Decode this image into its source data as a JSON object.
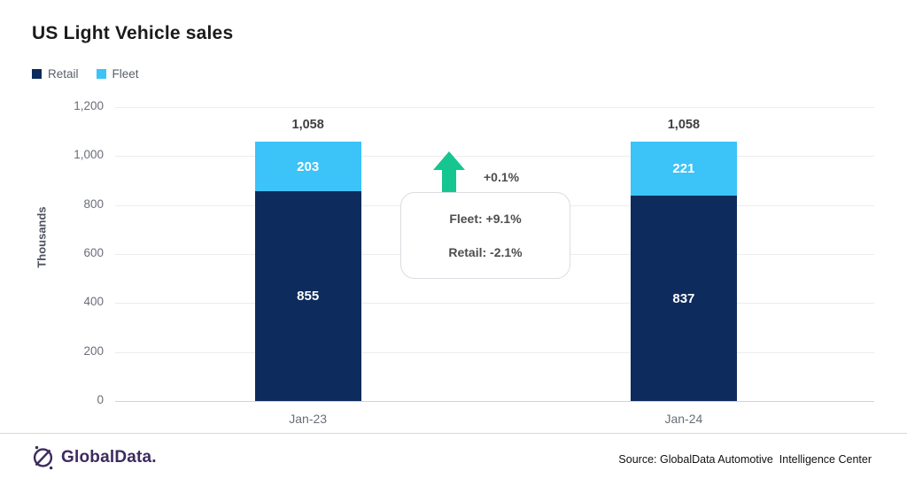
{
  "header": {
    "title": "US Light Vehicle sales"
  },
  "legend": [
    {
      "label": "Retail",
      "color": "#0d2b5c"
    },
    {
      "label": "Fleet",
      "color": "#3cc3f8"
    }
  ],
  "chart_data": {
    "type": "bar",
    "stacked": true,
    "title": "US Light Vehicle sales",
    "categories": [
      "Jan-23",
      "Jan-24"
    ],
    "series": [
      {
        "name": "Retail",
        "color": "#0d2b5c",
        "values": [
          855,
          837
        ]
      },
      {
        "name": "Fleet",
        "color": "#3cc3f8",
        "values": [
          203,
          221
        ]
      }
    ],
    "totals": [
      1058,
      1058
    ],
    "xlabel": "",
    "ylabel": "Thousands",
    "ylim": [
      0,
      1200
    ],
    "ytick_step": 200,
    "grid": true,
    "legend_position": "top-left"
  },
  "annotation": {
    "arrow_icon": "up-arrow",
    "arrow_color": "#16c690",
    "total_change": "+0.1%",
    "fleet_change_label": "Fleet: +9.1%",
    "retail_change_label": "Retail: -2.1%"
  },
  "footer": {
    "logo_text": "GlobalData.",
    "logo_color": "#3d2b5e",
    "source": "Source: GlobalData Automotive  Intelligence Center"
  }
}
